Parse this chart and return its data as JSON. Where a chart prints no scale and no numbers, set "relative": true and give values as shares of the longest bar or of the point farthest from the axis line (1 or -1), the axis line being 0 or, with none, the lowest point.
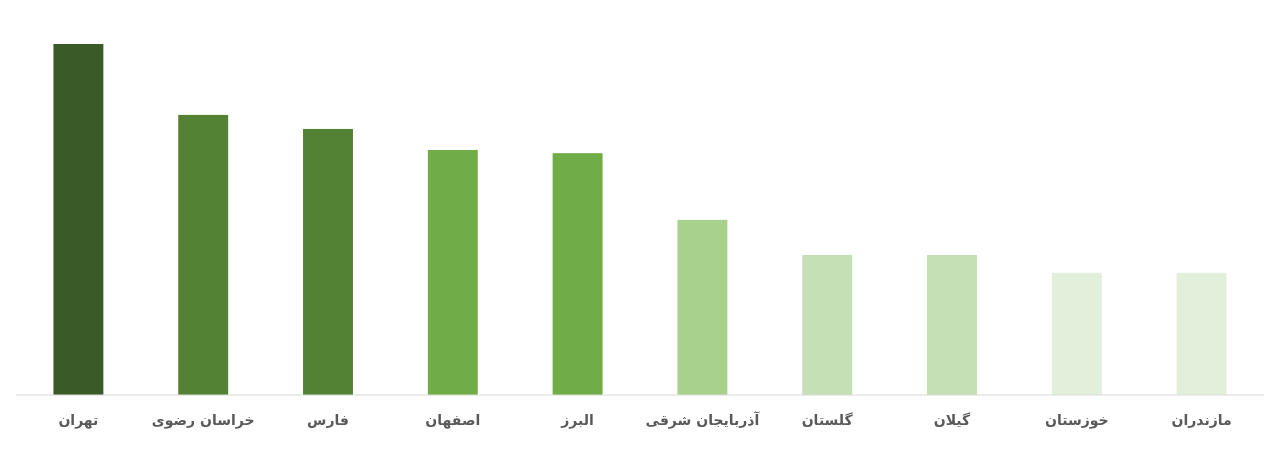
{
  "chart_data": {
    "type": "bar",
    "relative": true,
    "categories": [
      "تهران",
      "خراسان رضوی",
      "فارس",
      "اصفهان",
      "البرز",
      "آذربایجان شرقی",
      "گلستان",
      "گیلان",
      "خوزستان",
      "مازندران"
    ],
    "values": [
      1,
      0.798,
      0.758,
      0.698,
      0.689,
      0.499,
      0.399,
      0.399,
      0.348,
      0.348
    ],
    "colors": [
      "#3a5a27",
      "#548235",
      "#548235",
      "#70ad47",
      "#70ad47",
      "#a9d18e",
      "#c5e0b4",
      "#c5e0b4",
      "#e2efda",
      "#e2efda"
    ]
  }
}
